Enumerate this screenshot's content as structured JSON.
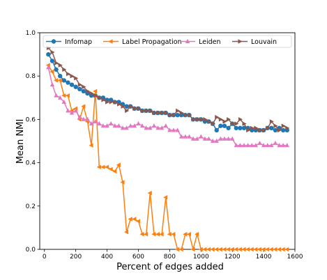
{
  "chart_data": {
    "type": "line",
    "xlabel": "Percent of edges added",
    "ylabel": "Mean NMI",
    "xlim": [
      -30,
      1600
    ],
    "ylim": [
      0.0,
      1.0
    ],
    "xticks": [
      0,
      200,
      400,
      600,
      800,
      1000,
      1200,
      1400,
      1600
    ],
    "yticks": [
      0.0,
      0.2,
      0.4,
      0.6,
      0.8,
      1.0
    ],
    "grid": false,
    "legend_position": "top",
    "series": [
      {
        "name": "Infomap",
        "color": "#1f77b4",
        "marker": "circle",
        "x": [
          25,
          50,
          75,
          100,
          125,
          150,
          175,
          200,
          225,
          250,
          275,
          300,
          325,
          350,
          375,
          400,
          425,
          450,
          475,
          500,
          525,
          550,
          575,
          600,
          625,
          650,
          675,
          700,
          725,
          750,
          775,
          800,
          825,
          850,
          875,
          900,
          925,
          950,
          975,
          1000,
          1025,
          1050,
          1075,
          1100,
          1125,
          1150,
          1175,
          1200,
          1225,
          1250,
          1275,
          1300,
          1325,
          1350,
          1375,
          1400,
          1425,
          1450,
          1475,
          1500,
          1525,
          1550
        ],
        "y": [
          0.9,
          0.87,
          0.83,
          0.8,
          0.78,
          0.77,
          0.76,
          0.75,
          0.74,
          0.73,
          0.72,
          0.71,
          0.71,
          0.7,
          0.7,
          0.69,
          0.69,
          0.68,
          0.68,
          0.67,
          0.66,
          0.66,
          0.65,
          0.65,
          0.64,
          0.64,
          0.64,
          0.63,
          0.63,
          0.63,
          0.63,
          0.62,
          0.62,
          0.62,
          0.62,
          0.62,
          0.62,
          0.6,
          0.6,
          0.6,
          0.59,
          0.59,
          0.58,
          0.55,
          0.57,
          0.57,
          0.56,
          0.58,
          0.56,
          0.56,
          0.56,
          0.56,
          0.55,
          0.55,
          0.55,
          0.55,
          0.56,
          0.56,
          0.55,
          0.56,
          0.55,
          0.55
        ]
      },
      {
        "name": "Label Propagation",
        "color": "#ff7f0e",
        "marker": "triangle-left",
        "x": [
          25,
          50,
          75,
          100,
          125,
          150,
          175,
          200,
          225,
          250,
          275,
          300,
          325,
          350,
          375,
          400,
          425,
          450,
          475,
          500,
          525,
          550,
          575,
          600,
          625,
          650,
          675,
          700,
          725,
          750,
          775,
          800,
          825,
          850,
          875,
          900,
          925,
          950,
          975,
          1000,
          1025,
          1050,
          1075,
          1100,
          1125,
          1150,
          1175,
          1200,
          1225,
          1250,
          1275,
          1300,
          1325,
          1350,
          1375,
          1400,
          1425,
          1450,
          1475,
          1500,
          1525,
          1550
        ],
        "y": [
          0.85,
          0.82,
          0.78,
          0.78,
          0.71,
          0.71,
          0.64,
          0.65,
          0.6,
          0.66,
          0.59,
          0.48,
          0.73,
          0.38,
          0.38,
          0.38,
          0.37,
          0.36,
          0.39,
          0.31,
          0.08,
          0.14,
          0.14,
          0.13,
          0.07,
          0.07,
          0.26,
          0.07,
          0.07,
          0.07,
          0.24,
          0.07,
          0.07,
          0.0,
          0.0,
          0.07,
          0.07,
          0.0,
          0.07,
          0.0,
          0.0,
          0.0,
          0.0,
          0.0,
          0.0,
          0.0,
          0.0,
          0.0,
          0.0,
          0.0,
          0.0,
          0.0,
          0.0,
          0.0,
          0.0,
          0.0,
          0.0,
          0.0,
          0.0,
          0.0,
          0.0,
          0.0
        ]
      },
      {
        "name": "Leiden",
        "color": "#e377c2",
        "marker": "triangle-up",
        "x": [
          25,
          50,
          75,
          100,
          125,
          150,
          175,
          200,
          225,
          250,
          275,
          300,
          325,
          350,
          375,
          400,
          425,
          450,
          475,
          500,
          525,
          550,
          575,
          600,
          625,
          650,
          675,
          700,
          725,
          750,
          775,
          800,
          825,
          850,
          875,
          900,
          925,
          950,
          975,
          1000,
          1025,
          1050,
          1075,
          1100,
          1125,
          1150,
          1175,
          1200,
          1225,
          1250,
          1275,
          1300,
          1325,
          1350,
          1375,
          1400,
          1425,
          1450,
          1475,
          1500,
          1525,
          1550
        ],
        "y": [
          0.84,
          0.76,
          0.71,
          0.7,
          0.68,
          0.64,
          0.63,
          0.64,
          0.61,
          0.6,
          0.6,
          0.58,
          0.59,
          0.58,
          0.57,
          0.57,
          0.58,
          0.57,
          0.57,
          0.56,
          0.56,
          0.57,
          0.57,
          0.58,
          0.57,
          0.56,
          0.56,
          0.57,
          0.56,
          0.56,
          0.57,
          0.55,
          0.55,
          0.55,
          0.52,
          0.52,
          0.52,
          0.51,
          0.51,
          0.52,
          0.51,
          0.51,
          0.5,
          0.5,
          0.51,
          0.51,
          0.51,
          0.51,
          0.48,
          0.48,
          0.48,
          0.48,
          0.48,
          0.48,
          0.49,
          0.48,
          0.48,
          0.48,
          0.49,
          0.48,
          0.48,
          0.48
        ]
      },
      {
        "name": "Louvain",
        "color": "#8c564b",
        "marker": "triangle-right",
        "x": [
          25,
          50,
          75,
          100,
          125,
          150,
          175,
          200,
          225,
          250,
          275,
          300,
          325,
          350,
          375,
          400,
          425,
          450,
          475,
          500,
          525,
          550,
          575,
          600,
          625,
          650,
          675,
          700,
          725,
          750,
          775,
          800,
          825,
          850,
          875,
          900,
          925,
          950,
          975,
          1000,
          1025,
          1050,
          1075,
          1100,
          1125,
          1150,
          1175,
          1200,
          1225,
          1250,
          1275,
          1300,
          1325,
          1350,
          1375,
          1400,
          1425,
          1450,
          1475,
          1500,
          1525,
          1550
        ],
        "y": [
          0.93,
          0.91,
          0.86,
          0.85,
          0.83,
          0.81,
          0.8,
          0.79,
          0.76,
          0.75,
          0.73,
          0.72,
          0.71,
          0.7,
          0.69,
          0.68,
          0.68,
          0.68,
          0.67,
          0.66,
          0.64,
          0.66,
          0.65,
          0.65,
          0.64,
          0.64,
          0.64,
          0.63,
          0.63,
          0.63,
          0.63,
          0.62,
          0.62,
          0.64,
          0.63,
          0.62,
          0.62,
          0.6,
          0.6,
          0.6,
          0.6,
          0.59,
          0.58,
          0.61,
          0.6,
          0.59,
          0.6,
          0.58,
          0.58,
          0.6,
          0.58,
          0.55,
          0.56,
          0.56,
          0.55,
          0.55,
          0.56,
          0.59,
          0.57,
          0.55,
          0.57,
          0.56
        ]
      }
    ]
  }
}
